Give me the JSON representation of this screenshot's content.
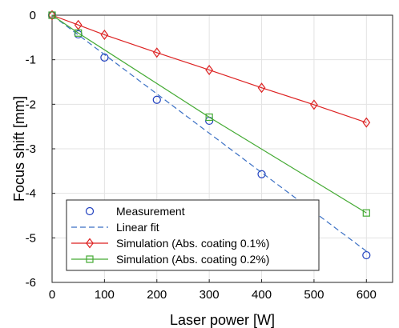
{
  "chart_data": {
    "type": "line",
    "xlabel": "Laser power [W]",
    "ylabel": "Focus shift [mm]",
    "xlim": [
      0,
      650
    ],
    "ylim": [
      -6,
      0
    ],
    "xticks": [
      0,
      100,
      200,
      300,
      400,
      500,
      600
    ],
    "yticks": [
      0,
      -1,
      -2,
      -3,
      -4,
      -5,
      -6
    ],
    "grid": true,
    "legend_position": "bottom-left",
    "series": [
      {
        "name": "Measurement",
        "style": "markers",
        "marker": "circle",
        "color": "#1f3fbf",
        "x": [
          0,
          50,
          100,
          200,
          300,
          400,
          500,
          600
        ],
        "y": [
          0,
          -0.43,
          -0.95,
          -1.9,
          -2.37,
          -3.57,
          -4.49,
          -5.39
        ]
      },
      {
        "name": "Linear fit",
        "style": "dashed",
        "color": "#3a6fc4",
        "x": [
          0,
          600
        ],
        "y": [
          0,
          -5.3
        ]
      },
      {
        "name": "Simulation (Abs. coating 0.1%)",
        "style": "line-markers",
        "marker": "diamond",
        "color": "#dd2222",
        "x": [
          0,
          50,
          100,
          200,
          300,
          400,
          500,
          600
        ],
        "y": [
          0,
          -0.22,
          -0.44,
          -0.84,
          -1.23,
          -1.63,
          -2.01,
          -2.41
        ]
      },
      {
        "name": "Simulation (Abs. coating 0.2%)",
        "style": "line-markers",
        "marker": "square",
        "color": "#44aa33",
        "x": [
          0,
          50,
          300,
          600
        ],
        "y": [
          0,
          -0.4,
          -2.29,
          -4.44
        ]
      }
    ]
  }
}
